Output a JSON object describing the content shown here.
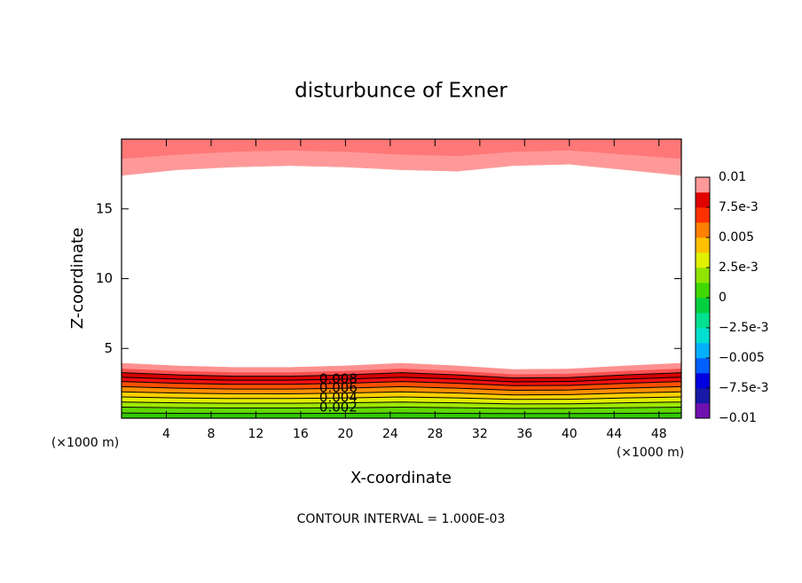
{
  "chart_data": {
    "type": "contour",
    "title": "disturbunce of Exner",
    "xlabel": "X-coordinate",
    "ylabel": "Z-coordinate",
    "xunit": "(×1000 m)",
    "yunit": "(×1000 m)",
    "footer": "CONTOUR INTERVAL = 1.000E-03",
    "xlim": [
      0,
      50
    ],
    "ylim": [
      0,
      20
    ],
    "xticks": [
      4,
      8,
      12,
      16,
      20,
      24,
      28,
      32,
      36,
      40,
      44,
      48
    ],
    "yticks": [
      5,
      10,
      15
    ],
    "x": [
      0,
      5,
      10,
      15,
      20,
      25,
      30,
      35,
      40,
      45,
      50
    ],
    "contour_groups": [
      {
        "fill_to": "bottom",
        "contours": [
          {
            "level": 0.001,
            "color": "#30c800",
            "line": true,
            "values": [
              0.37,
              0.35,
              0.34,
              0.34,
              0.35,
              0.37,
              0.35,
              0.33,
              0.33,
              0.35,
              0.37
            ]
          },
          {
            "level": 0.002,
            "color": "#60d800",
            "line": true,
            "labeled": true,
            "values": [
              0.79,
              0.75,
              0.73,
              0.73,
              0.75,
              0.79,
              0.75,
              0.7,
              0.71,
              0.75,
              0.79
            ]
          },
          {
            "level": 0.003,
            "color": "#a0e800",
            "line": true,
            "values": [
              1.16,
              1.1,
              1.07,
              1.07,
              1.1,
              1.16,
              1.1,
              1.02,
              1.03,
              1.1,
              1.16
            ]
          },
          {
            "level": 0.004,
            "color": "#e0f000",
            "line": true,
            "labeled": true,
            "values": [
              1.52,
              1.45,
              1.41,
              1.41,
              1.45,
              1.52,
              1.45,
              1.35,
              1.36,
              1.45,
              1.52
            ]
          },
          {
            "level": 0.005,
            "color": "#ffd000",
            "line": true,
            "values": [
              1.89,
              1.8,
              1.75,
              1.75,
              1.8,
              1.89,
              1.8,
              1.67,
              1.69,
              1.8,
              1.89
            ]
          },
          {
            "level": 0.006,
            "color": "#ff9000",
            "line": true,
            "labeled": true,
            "values": [
              2.26,
              2.15,
              2.09,
              2.09,
              2.15,
              2.26,
              2.15,
              2.0,
              2.02,
              2.15,
              2.26
            ]
          },
          {
            "level": 0.007,
            "color": "#ff5000",
            "line": true,
            "values": [
              2.63,
              2.5,
              2.43,
              2.43,
              2.5,
              2.63,
              2.5,
              2.33,
              2.35,
              2.5,
              2.63
            ]
          },
          {
            "level": 0.008,
            "color": "#f01010",
            "line": true,
            "labeled": true,
            "values": [
              2.94,
              2.8,
              2.72,
              2.72,
              2.8,
              2.94,
              2.8,
              2.6,
              2.63,
              2.8,
              2.94
            ]
          },
          {
            "level": 0.009,
            "color": "#d80000",
            "line": true,
            "values": [
              3.26,
              3.1,
              3.01,
              3.01,
              3.1,
              3.26,
              3.1,
              2.88,
              2.91,
              3.1,
              3.26
            ]
          },
          {
            "level": 0.0095,
            "color": "#ff5050",
            "line": false,
            "values": [
              3.57,
              3.4,
              3.3,
              3.3,
              3.4,
              3.57,
              3.4,
              3.16,
              3.2,
              3.4,
              3.57
            ]
          },
          {
            "level": 0.01,
            "color": "#ff9090",
            "line": false,
            "values": [
              3.94,
              3.75,
              3.64,
              3.64,
              3.75,
              3.94,
              3.75,
              3.49,
              3.53,
              3.75,
              3.94
            ]
          }
        ]
      },
      {
        "fill_to": "top",
        "contours": [
          {
            "level": 0.0095,
            "color": "#ff9999",
            "line": false,
            "values": [
              17.4,
              17.8,
              18.0,
              18.1,
              18.0,
              17.8,
              17.7,
              18.1,
              18.2,
              17.8,
              17.4
            ]
          },
          {
            "level": 0.0099,
            "color": "#ff7777",
            "line": false,
            "values": [
              18.6,
              18.9,
              19.1,
              19.2,
              19.1,
              18.9,
              18.8,
              19.1,
              19.2,
              18.9,
              18.6
            ]
          }
        ]
      }
    ],
    "colorbar": {
      "clim": [
        -0.01,
        0.01
      ],
      "colors": [
        "#7010b0",
        "#1818a8",
        "#0000e0",
        "#0060ff",
        "#00b0ff",
        "#00e0d0",
        "#00e090",
        "#00d040",
        "#40d800",
        "#90e400",
        "#e0f000",
        "#ffc000",
        "#ff8000",
        "#ff3000",
        "#e00000",
        "#ff9999"
      ],
      "ticks": [
        0.01,
        {
          "value": 0.0075,
          "label": "7.5e-3"
        },
        0.005,
        {
          "value": 0.0025,
          "label": "2.5e-3"
        },
        0,
        {
          "value": -0.0025,
          "label": "−2.5e-3"
        },
        {
          "value": -0.005,
          "label": "−0.005"
        },
        {
          "value": -0.0075,
          "label": "−7.5e-3"
        },
        {
          "value": -0.01,
          "label": "−0.01"
        }
      ]
    }
  }
}
